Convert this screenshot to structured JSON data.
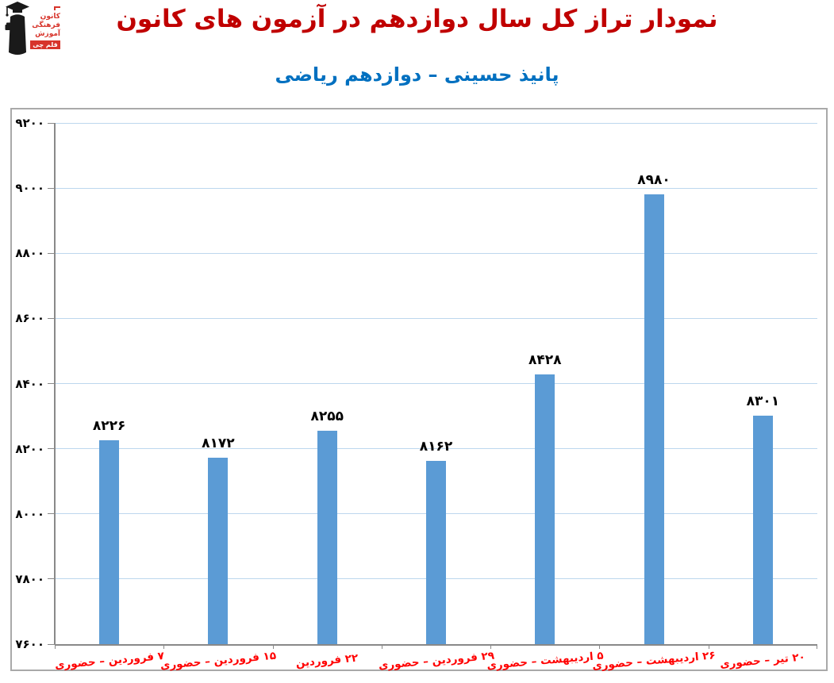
{
  "header": {
    "title": "نمودار تراز کل سال دوازدهم در آزمون های کانون",
    "title_color": "#c00000",
    "subtitle": "پانیذ حسینی – دوازدهم ریاضی",
    "subtitle_color": "#0070c0"
  },
  "logo": {
    "org_line1": "کانون",
    "org_line2": "فرهنگی",
    "org_line3": "آموزش",
    "badge": "قلم چی",
    "brand_color": "#d7342b",
    "figure_color": "#1a1a1a"
  },
  "chart_data": {
    "type": "bar",
    "title": "نمودار تراز کل سال دوازدهم در آزمون های کانون",
    "subtitle": "پانیذ حسینی – دوازدهم ریاضی",
    "xlabel": "",
    "ylabel": "",
    "categories": [
      "۷ فروردین – حضوری",
      "۱۵ فروردین – حضوری",
      "۲۲ فروردین",
      "۲۹ فروردین – حضوری",
      "۵ اردیبهشت – حضوری",
      "۲۶ اردیبهشت – حضوری",
      "۲۰ تیر – حضوری"
    ],
    "values": [
      8226,
      8172,
      8255,
      8162,
      8428,
      8980,
      8301
    ],
    "value_labels_fa": [
      "۸۲۲۶",
      "۸۱۷۲",
      "۸۲۵۵",
      "۸۱۶۲",
      "۸۴۲۸",
      "۸۹۸۰",
      "۸۳۰۱"
    ],
    "y_axis": {
      "min": 7600,
      "max": 9200,
      "step": 200,
      "tick_labels_fa": [
        "۷۶۰۰",
        "۷۸۰۰",
        "۸۰۰۰",
        "۸۲۰۰",
        "۸۴۰۰",
        "۸۶۰۰",
        "۸۸۰۰",
        "۹۰۰۰",
        "۹۲۰۰"
      ]
    },
    "ylim": [
      7600,
      9200
    ],
    "grid": true,
    "legend": false,
    "colors": {
      "bar": "#5b9bd5",
      "gridline": "#bdd7ee",
      "axis": "#898989",
      "y_tick_label": "#000000",
      "value_label": "#000000",
      "category_label": "#ff0000",
      "frame_border": "#a9a9a9"
    }
  }
}
